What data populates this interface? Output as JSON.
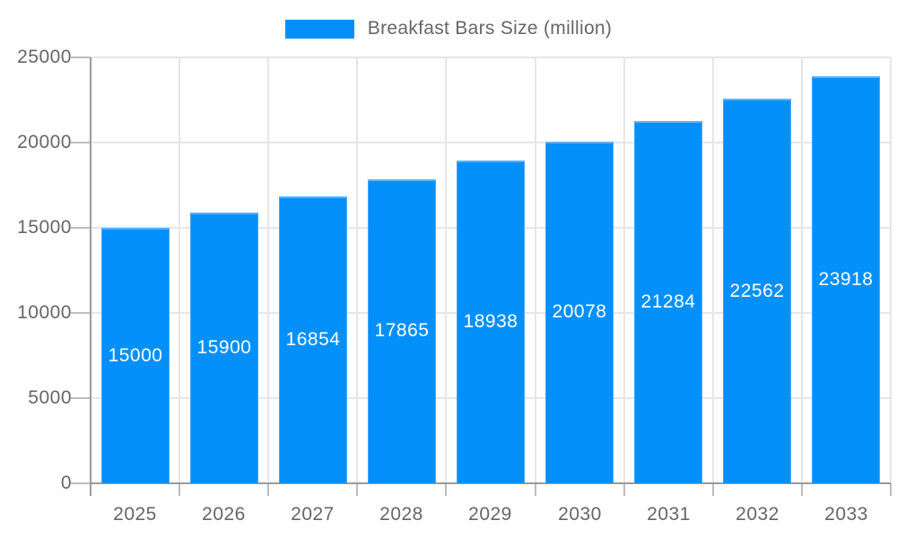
{
  "legend": {
    "label": "Breakfast Bars Size (million)"
  },
  "chart_data": {
    "type": "bar",
    "categories": [
      "2025",
      "2026",
      "2027",
      "2028",
      "2029",
      "2030",
      "2031",
      "2032",
      "2033"
    ],
    "values": [
      15000,
      15900,
      16854,
      17865,
      18938,
      20078,
      21284,
      22562,
      23918
    ],
    "title": "",
    "xlabel": "",
    "ylabel": "",
    "ylim": [
      0,
      25000
    ],
    "yticks": [
      0,
      5000,
      10000,
      15000,
      20000,
      25000
    ],
    "grid": true,
    "bar_value_labels_shown": true,
    "legend_entries": [
      "Breakfast Bars Size (million)"
    ],
    "legend_position": "top",
    "colors": {
      "bar_fill": "#0490FB",
      "bar_border": "#5FB2F9",
      "grid": "#E6E6E6",
      "tick": "#BDBDBD",
      "axis": "#9B9B9B",
      "text": "#666666",
      "bar_label_text": "#FFFFFF",
      "background": "#FFFFFF"
    }
  }
}
